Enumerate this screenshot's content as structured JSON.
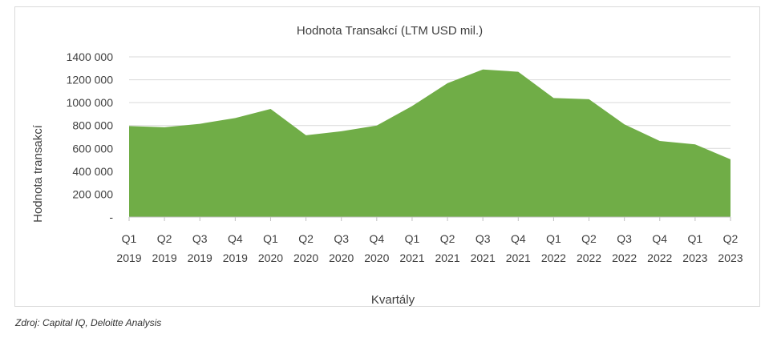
{
  "chart_data": {
    "type": "area",
    "title": "Hodnota Transakcí (LTM USD mil.)",
    "xlabel": "Kvartály",
    "ylabel": "Hodnota transakcí",
    "ylim": [
      0,
      1400000
    ],
    "y_ticks": [
      0,
      200000,
      400000,
      600000,
      800000,
      1000000,
      1200000,
      1400000
    ],
    "y_tick_labels": [
      "-",
      "200 000",
      "400 000",
      "600 000",
      "800 000",
      "1000 000",
      "1200 000",
      "1400 000"
    ],
    "categories": [
      [
        "Q1",
        "2019"
      ],
      [
        "Q2",
        "2019"
      ],
      [
        "Q3",
        "2019"
      ],
      [
        "Q4",
        "2019"
      ],
      [
        "Q1",
        "2020"
      ],
      [
        "Q2",
        "2020"
      ],
      [
        "Q3",
        "2020"
      ],
      [
        "Q4",
        "2020"
      ],
      [
        "Q1",
        "2021"
      ],
      [
        "Q2",
        "2021"
      ],
      [
        "Q3",
        "2021"
      ],
      [
        "Q4",
        "2021"
      ],
      [
        "Q1",
        "2022"
      ],
      [
        "Q2",
        "2022"
      ],
      [
        "Q3",
        "2022"
      ],
      [
        "Q4",
        "2022"
      ],
      [
        "Q1",
        "2023"
      ],
      [
        "Q2",
        "2023"
      ]
    ],
    "series": [
      {
        "values": [
          795000,
          785000,
          815000,
          865000,
          945000,
          715000,
          750000,
          800000,
          970000,
          1170000,
          1290000,
          1270000,
          1040000,
          1030000,
          810000,
          665000,
          635000,
          505000
        ],
        "color": "#70ad47"
      }
    ],
    "grid": true,
    "legend": "none"
  },
  "source": "Zdroj: Capital IQ, Deloitte Analysis"
}
